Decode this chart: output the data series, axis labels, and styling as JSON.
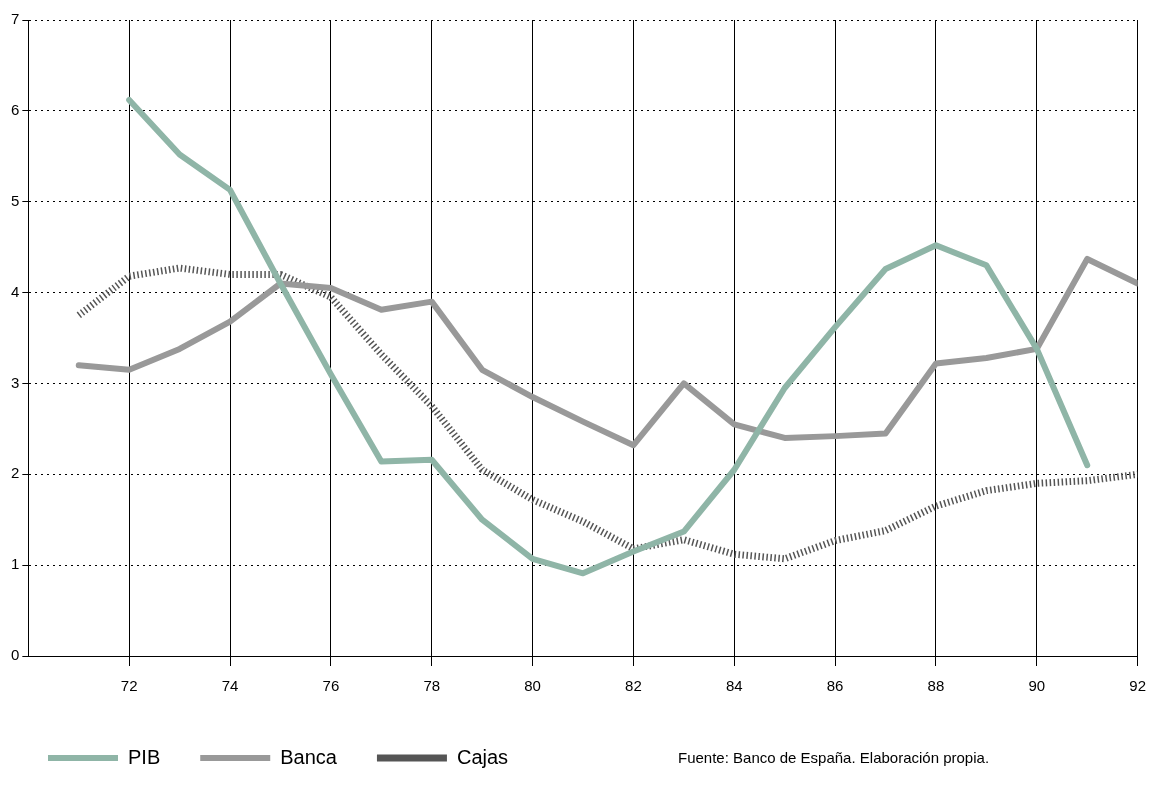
{
  "chart_data": {
    "type": "line",
    "x": [
      71,
      72,
      73,
      74,
      75,
      76,
      77,
      78,
      79,
      80,
      81,
      82,
      83,
      84,
      85,
      86,
      87,
      88,
      89,
      90,
      91,
      92
    ],
    "series": [
      {
        "name": "PIB",
        "color": "#8fb5a7",
        "values": [
          null,
          6.12,
          5.52,
          5.13,
          4.1,
          3.1,
          2.14,
          2.16,
          1.5,
          1.07,
          0.91,
          1.15,
          1.37,
          2.05,
          2.95,
          3.62,
          4.26,
          4.52,
          4.3,
          3.38,
          2.1,
          null
        ]
      },
      {
        "name": "Banca",
        "color": "#999999",
        "values": [
          3.2,
          3.15,
          3.38,
          3.68,
          4.1,
          4.05,
          3.81,
          3.9,
          3.15,
          2.85,
          2.58,
          2.32,
          3.0,
          2.55,
          2.4,
          2.42,
          2.45,
          3.22,
          3.28,
          3.38,
          4.37,
          4.1
        ]
      },
      {
        "name": "Cajas",
        "color": "#555555",
        "line_style": "dotted",
        "values": [
          3.75,
          4.18,
          4.27,
          4.2,
          4.2,
          3.95,
          3.32,
          2.75,
          2.05,
          1.72,
          1.48,
          1.18,
          1.28,
          1.12,
          1.07,
          1.27,
          1.38,
          1.65,
          1.82,
          1.9,
          1.93,
          2.0
        ]
      }
    ],
    "xlim": [
      70,
      92
    ],
    "xticks": [
      72,
      74,
      76,
      78,
      80,
      82,
      84,
      86,
      88,
      90,
      92
    ],
    "ylim": [
      0,
      7
    ],
    "yticks": [
      0,
      1,
      2,
      3,
      4,
      5,
      6,
      7
    ],
    "grid": true,
    "legend": "bottom left",
    "marker": "none",
    "line_style": "solid",
    "annotations": [
      "Fuente: Banco de España. Elaboración propia."
    ]
  }
}
